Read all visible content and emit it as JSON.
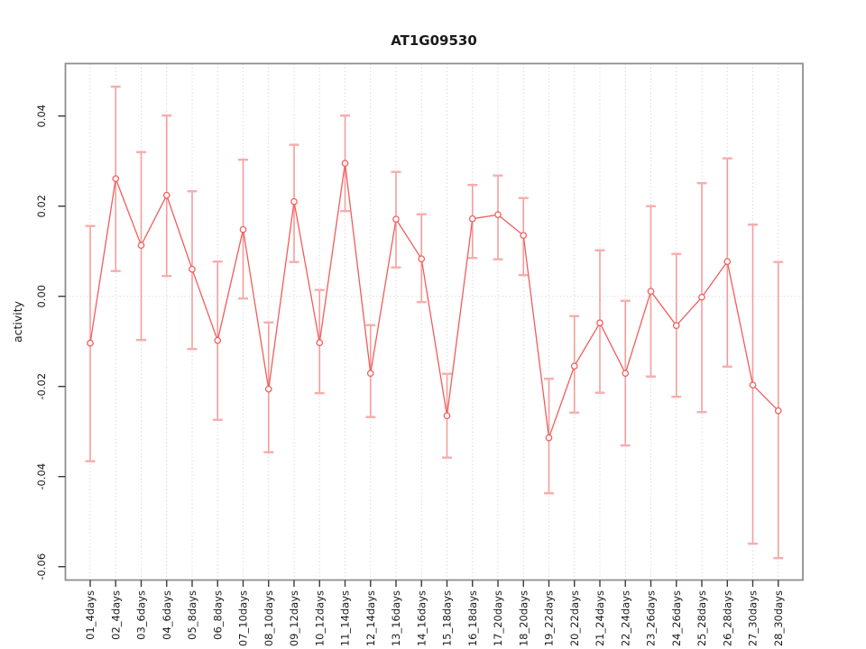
{
  "chart": {
    "colors": {
      "background": "#ffffff",
      "series_line": "#f25c5c",
      "marker_stroke": "#f25c5c",
      "marker_fill": "#ffffff",
      "error_bar": "#f69c9c",
      "error_cap": "#f8adad",
      "gridline": "#dcdcdc",
      "frame": "#8f8f8f",
      "tick_mark": "#3a3a3a",
      "text": "#1a1a1a"
    }
  },
  "chart_data": {
    "type": "line",
    "title": "AT1G09530",
    "xlabel": "",
    "ylabel": "activity",
    "legend": "none",
    "grid": "vertical dotted line at every category; horizontal dotted line at y=0",
    "categories": [
      "01_4days",
      "02_4days",
      "03_6days",
      "04_6days",
      "05_8days",
      "06_8days",
      "07_10days",
      "08_10days",
      "09_12days",
      "10_12days",
      "11_14days",
      "12_14days",
      "13_16days",
      "14_16days",
      "15_18days",
      "16_18days",
      "17_20days",
      "18_20days",
      "19_22days",
      "20_22days",
      "21_24days",
      "22_24days",
      "23_26days",
      "24_26days",
      "25_28days",
      "26_28days",
      "27_30days",
      "28_30days"
    ],
    "yticks": [
      0.04,
      0.02,
      0,
      -0.02,
      -0.04,
      -0.06
    ],
    "ytick_labels": [
      "0.04",
      "0.02",
      "0.00",
      "-0.02",
      "-0.04",
      "-0.06"
    ],
    "ylim": [
      -0.063,
      0.0517
    ],
    "series": [
      {
        "name": "activity",
        "marker": "open-circle",
        "values": [
          -0.0104,
          0.0261,
          0.0113,
          0.0224,
          0.006,
          -0.0098,
          0.0148,
          -0.0206,
          0.021,
          -0.0103,
          0.0295,
          -0.0171,
          0.0171,
          0.0083,
          -0.0265,
          0.0172,
          0.0181,
          0.0135,
          -0.0314,
          -0.0155,
          -0.0059,
          -0.0171,
          0.0011,
          -0.0065,
          -0.0002,
          0.0077,
          -0.0197,
          -0.0254
        ],
        "error_high": [
          0.0156,
          0.0465,
          0.032,
          0.0401,
          0.0233,
          0.0077,
          0.0303,
          -0.0058,
          0.0336,
          0.0014,
          0.0401,
          -0.0064,
          0.0276,
          0.0182,
          -0.0172,
          0.0247,
          0.0268,
          0.0218,
          -0.0183,
          -0.0044,
          0.0102,
          -0.001,
          0.02,
          0.0094,
          0.0251,
          0.0306,
          0.0159,
          0.0076
        ],
        "error_low": [
          -0.0366,
          0.0056,
          -0.0097,
          0.0045,
          -0.0117,
          -0.0274,
          -0.0005,
          -0.0346,
          0.0076,
          -0.0215,
          0.0189,
          -0.0268,
          0.0064,
          -0.0013,
          -0.0358,
          0.0085,
          0.0082,
          0.0047,
          -0.0437,
          -0.0258,
          -0.0214,
          -0.0331,
          -0.0178,
          -0.0223,
          -0.0257,
          -0.0156,
          -0.0549,
          -0.0581
        ]
      }
    ]
  }
}
